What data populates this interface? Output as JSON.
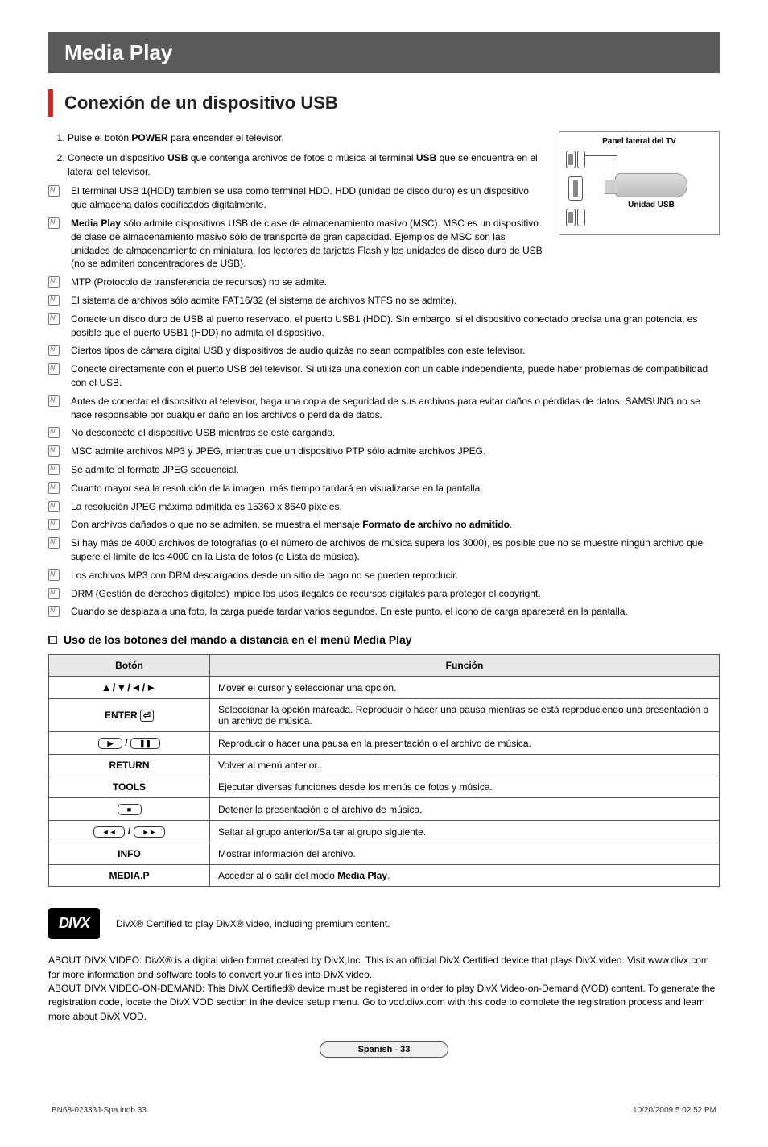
{
  "title": "Media Play",
  "section_heading": "Conexión de un dispositivo USB",
  "panel": {
    "label": "Panel lateral del TV",
    "usb_label": "Unidad USB"
  },
  "steps": [
    {
      "num": "1.",
      "html": "Pulse el botón <b>POWER</b> para encender el televisor."
    },
    {
      "num": "2.",
      "html": "Conecte un dispositivo <b>USB</b> que contenga archivos de fotos o música al terminal <b>USB</b> que se encuentra en el lateral del televisor."
    }
  ],
  "notes": [
    "El terminal USB 1(HDD) también se usa como terminal HDD. HDD (unidad de disco duro) es un dispositivo que almacena datos codificados digitalmente.",
    "<b>Media Play</b> sólo admite dispositivos USB de clase de almacenamiento masivo (MSC). MSC es un dispositivo de clase de almacenamiento masivo sólo de transporte de gran capacidad. Ejemplos de MSC son las unidades de almacenamiento en miniatura, los lectores de tarjetas Flash y las unidades de disco duro de USB (no se admiten concentradores de USB).",
    "MTP (Protocolo de transferencia de recursos) no se admite.",
    "El sistema de archivos sólo admite FAT16/32 (el sistema de archivos NTFS no se admite).",
    "Conecte un disco duro de USB al puerto reservado, el puerto USB1 (HDD). Sin embargo, si el dispositivo conectado precisa una gran potencia, es posible que el puerto USB1 (HDD) no admita el dispositivo.",
    "Ciertos tipos de cámara digital USB y dispositivos de audio quizás no sean compatibles con este televisor.",
    "Conecte directamente con el puerto USB del televisor. Si utiliza una conexión con un cable independiente, puede haber problemas de compatibilidad con el USB.",
    "Antes de conectar el dispositivo al televisor, haga una copia de seguridad de sus archivos para evitar daños o pérdidas de datos. SAMSUNG no se hace responsable por cualquier daño en los archivos o pérdida de datos.",
    "No desconecte el dispositivo USB mientras se esté cargando.",
    "MSC admite archivos MP3 y JPEG, mientras que un dispositivo PTP sólo admite archivos JPEG.",
    "Se admite el formato JPEG secuencial.",
    "Cuanto mayor sea la resolución de la imagen, más tiempo tardará en visualizarse en la pantalla.",
    "La resolución JPEG máxima admitida es 15360 x 8640 píxeles.",
    "Con archivos dañados o que no se admiten, se muestra el mensaje <b>Formato de archivo no admitido</b>.",
    "Si hay más de 4000 archivos de fotografías (o el número de archivos de música supera los 3000), es posible que no se muestre ningún archivo que supere el límite de los 4000 en la Lista de fotos (o Lista de música).",
    "Los archivos MP3 con DRM descargados desde un sitio de pago no se pueden reproducir.",
    "DRM (Gestión de derechos digitales) impide los usos ilegales de recursos digitales para proteger el copyright.",
    "Cuando se desplaza a una foto, la carga puede tardar varios segundos. En este punto, el icono de carga aparecerá en la pantalla."
  ],
  "sub_heading": "Uso de los botones del mando a distancia en el menú Media Play",
  "table": {
    "columns": [
      "Botón",
      "Función"
    ],
    "rows": [
      {
        "btn_type": "arrows",
        "btn_label": "▲/▼/◄/►",
        "func": "Mover el cursor y seleccionar una opción."
      },
      {
        "btn_type": "enter",
        "btn_label": "ENTER",
        "func": "Seleccionar la opción marcada. Reproducir o hacer una pausa mientras se está reproduciendo una presentación o un archivo de música."
      },
      {
        "btn_type": "playpause",
        "btn_label": "► / ❚❚",
        "func": "Reproducir o hacer una pausa en la presentación o el archivo de música."
      },
      {
        "btn_type": "text",
        "btn_label": "RETURN",
        "func": "Volver al menú anterior.."
      },
      {
        "btn_type": "text",
        "btn_label": "TOOLS",
        "func": "Ejecutar diversas funciones desde los menús de fotos y música."
      },
      {
        "btn_type": "stop",
        "btn_label": "■",
        "func": "Detener la presentación o el archivo de música."
      },
      {
        "btn_type": "skip",
        "btn_label": "◄◄ / ►►",
        "func": "Saltar al grupo anterior/Saltar al grupo siguiente."
      },
      {
        "btn_type": "text",
        "btn_label": "INFO",
        "func": "Mostrar información del archivo."
      },
      {
        "btn_type": "text",
        "btn_label": "MEDIA.P",
        "func_html": "Acceder al o salir del modo <b>Media Play</b>."
      }
    ]
  },
  "divx": {
    "logo_text": "DIVX",
    "cert_text": "DivX® Certified to play DivX® video, including premium content.",
    "about": "ABOUT DIVX VIDEO: DivX® is a digital video format created by DivX,Inc. This is an official DivX Certified device that plays DivX video. Visit www.divx.com for more information and software tools to convert your files into DivX video.\nABOUT DIVX VIDEO-ON-DEMAND: This DivX Certified® device must be registered in order to play DivX Video-on-Demand (VOD) content. To generate the registration code, locate the DivX VOD section in the device setup menu. Go to vod.divx.com with this code to complete the registration process and learn more about DivX VOD."
  },
  "footer": {
    "page_label": "Spanish - 33",
    "doc_ref": "BN68-02333J-Spa.indb   33",
    "timestamp": "10/20/2009   5:02:52 PM"
  },
  "colors": {
    "title_bg": "#5a5a5a",
    "accent": "#c62828",
    "border": "#555555",
    "th_bg": "#e8e8e8"
  }
}
